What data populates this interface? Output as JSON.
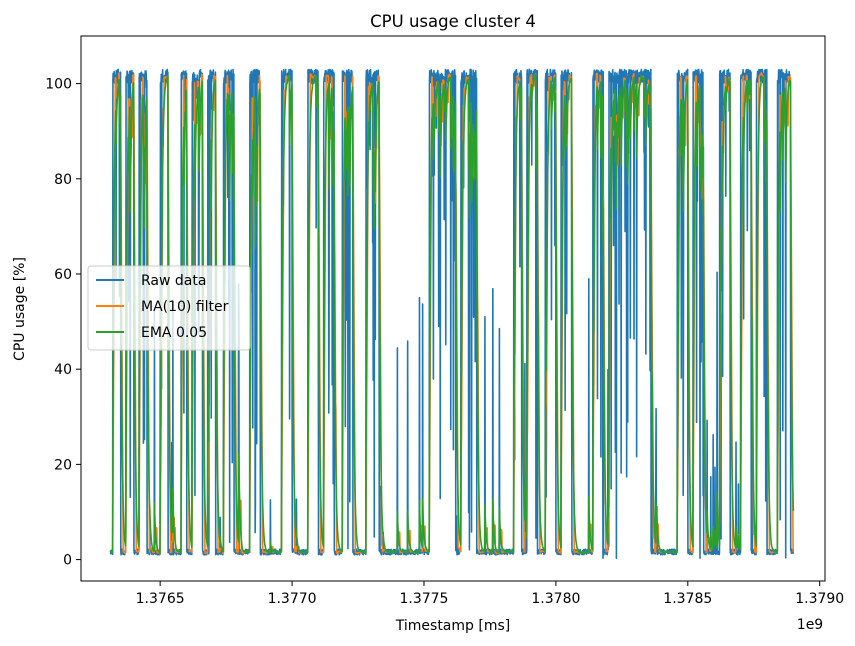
{
  "chart_data": {
    "type": "line",
    "title": "CPU usage cluster 4",
    "xlabel": "Timestamp [ms]",
    "ylabel": "CPU usage [%]",
    "x_offset_label": "1e9",
    "xlim": [
      1.3762,
      1.37902
    ],
    "ylim": [
      -4.5,
      110
    ],
    "x_ticks": [
      1.3765,
      1.377,
      1.3775,
      1.378,
      1.3785,
      1.379
    ],
    "x_tick_labels": [
      "1.3765",
      "1.3770",
      "1.3775",
      "1.3780",
      "1.3785",
      "1.3790"
    ],
    "y_ticks": [
      0,
      20,
      40,
      60,
      80,
      100
    ],
    "y_tick_labels": [
      "0",
      "20",
      "40",
      "60",
      "80",
      "100"
    ],
    "grid": false,
    "legend_position": "center-left",
    "series": [
      {
        "name": "Raw data",
        "color": "#1f77b4"
      },
      {
        "name": "MA(10) filter",
        "color": "#ff7f0e"
      },
      {
        "name": "EMA 0.05",
        "color": "#2ca02c"
      }
    ],
    "busy_periods": [
      [
        1.37632,
        1.37635
      ],
      [
        1.37637,
        1.3764
      ],
      [
        1.37642,
        1.37645
      ],
      [
        1.3765,
        1.37653
      ],
      [
        1.37658,
        1.3766
      ],
      [
        1.37662,
        1.37666
      ],
      [
        1.37668,
        1.37671
      ],
      [
        1.37674,
        1.37678
      ],
      [
        1.37684,
        1.37688
      ],
      [
        1.37696,
        1.377
      ],
      [
        1.37706,
        1.3771
      ],
      [
        1.37712,
        1.37716
      ],
      [
        1.37719,
        1.37723
      ],
      [
        1.37728,
        1.37733
      ],
      [
        1.37752,
        1.37762
      ],
      [
        1.37764,
        1.3777
      ],
      [
        1.37784,
        1.37787
      ],
      [
        1.37789,
        1.37793
      ],
      [
        1.37796,
        1.378
      ],
      [
        1.37802,
        1.37806
      ],
      [
        1.37814,
        1.37818
      ],
      [
        1.3782,
        1.37836
      ],
      [
        1.37846,
        1.3785
      ],
      [
        1.37852,
        1.37856
      ],
      [
        1.37862,
        1.37866
      ],
      [
        1.3787,
        1.37874
      ],
      [
        1.37876,
        1.3788
      ],
      [
        1.37884,
        1.37889
      ]
    ],
    "idle_level": 1,
    "busy_level": 103
  }
}
